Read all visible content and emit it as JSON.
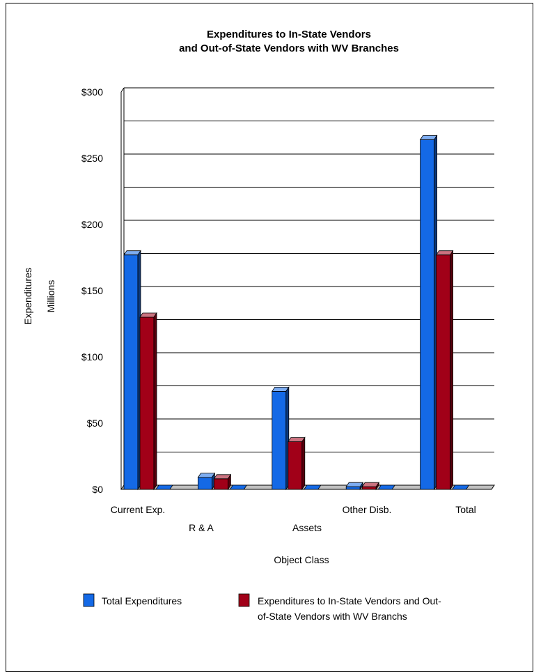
{
  "chart_data": {
    "type": "bar",
    "title": "Expenditures to In-State Vendors",
    "subtitle": "and Out-of-State Vendors with WV Branches",
    "ylabel": "Expenditures",
    "ylabel2": "Millions",
    "xlabel": "Object Class",
    "categories": [
      "Current Exp.",
      "R & A",
      "Assets",
      "Other Disb.",
      "Total"
    ],
    "ylim": [
      0,
      300
    ],
    "yticks": [
      "$0",
      "$50",
      "$100",
      "$150",
      "$200",
      "$250",
      "$300"
    ],
    "grid": true,
    "legend_position": "bottom",
    "series": [
      {
        "name": "Total Expenditures",
        "values": [
          177,
          9,
          74,
          2,
          264
        ],
        "color": "#1469e6"
      },
      {
        "name": "Expenditures to In-State Vendors and Out-of-State Vendors with WV Branchs",
        "legend_line1": "Expenditures to In-State Vendors and Out-",
        "legend_line2": "of-State Vendors with WV Branchs",
        "values": [
          130,
          8,
          36,
          2,
          177
        ],
        "color": "#a10018"
      }
    ]
  }
}
